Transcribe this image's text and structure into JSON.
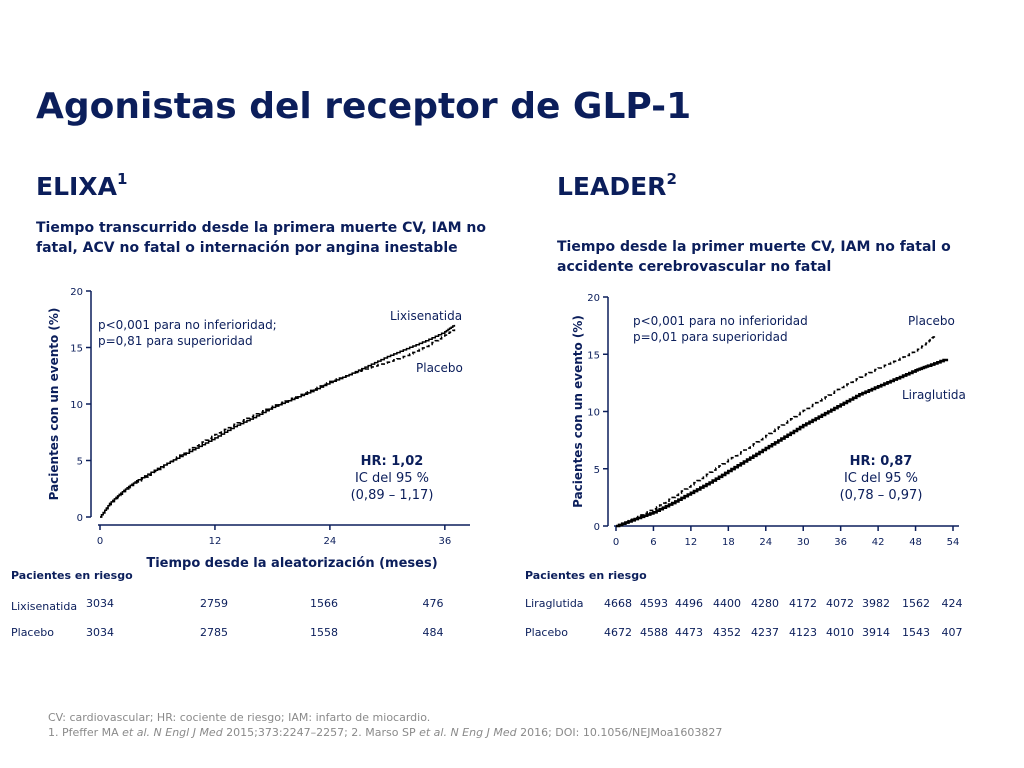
{
  "page": {
    "title": "Agonistas del receptor de GLP-1"
  },
  "elixa": {
    "name": "ELIXA",
    "ref": "1",
    "endpoint": "Tiempo transcurrido desde la primera muerte CV, IAM no fatal, ACV no fatal o internación por angina inestable",
    "pvalue_line1": "p<0,001 para no inferioridad;",
    "pvalue_line2": "p=0,81 para superioridad",
    "hr_line1": "HR: 1,02",
    "hr_line2": "IC del 95 %",
    "hr_line3": "(0,89 – 1,17)",
    "risk_title": "Pacientes en riesgo",
    "risk_rows": [
      {
        "label": "Lixisenatida",
        "values": [
          "3034",
          "2759",
          "1566",
          "476"
        ]
      },
      {
        "label": "Placebo",
        "values": [
          "3034",
          "2785",
          "1558",
          "484"
        ]
      }
    ]
  },
  "leader": {
    "name": "LEADER",
    "ref": "2",
    "endpoint": "Tiempo desde la primer muerte CV, IAM no fatal o accidente cerebrovascular no fatal",
    "pvalue_line1": "p<0,001 para no inferioridad",
    "pvalue_line2": "p=0,01 para superioridad",
    "hr_line1": "HR: 0,87",
    "hr_line2": "IC del 95 %",
    "hr_line3": "(0,78 – 0,97)",
    "risk_title": "Pacientes en riesgo",
    "risk_rows": [
      {
        "label": "Liraglutida",
        "values": [
          "4668",
          "4593",
          "4496",
          "4400",
          "4280",
          "4172",
          "4072",
          "3982",
          "1562",
          "424"
        ]
      },
      {
        "label": "Placebo",
        "values": [
          "4672",
          "4588",
          "4473",
          "4352",
          "4237",
          "4123",
          "4010",
          "3914",
          "1543",
          "407"
        ]
      }
    ]
  },
  "footnotes": {
    "line1": "CV: cardiovascular; HR: cociente de riesgo; IAM: infarto de miocardio.",
    "line2_a": "1. Pfeffer MA ",
    "line2_b": "et al. N Engl J Med",
    "line2_c": " 2015;373:2247–2257; 2. Marso SP ",
    "line2_d": "et al. N Eng J Med",
    "line2_e": " 2016; DOI: 10.1056/NEJMoa1603827"
  },
  "colors": {
    "navy": "#0b1e5b",
    "line": "#000000",
    "footnote": "#8a8a8a"
  },
  "chart_data": [
    {
      "type": "line",
      "title": "",
      "xlabel": "Tiempo desde la aleatorización (meses)",
      "ylabel": "Pacientes con un evento (%)",
      "xlim": [
        0,
        38
      ],
      "ylim": [
        0,
        20
      ],
      "xticks": [
        0,
        12,
        24,
        36
      ],
      "yticks": [
        0,
        5,
        10,
        15,
        20
      ],
      "legend": [
        "Lixisenatida",
        "Placebo"
      ],
      "series": [
        {
          "name": "Lixisenatida",
          "style": "solid",
          "x": [
            0,
            1,
            2,
            3,
            4,
            6,
            8,
            10,
            12,
            14,
            16,
            18,
            20,
            22,
            24,
            26,
            28,
            30,
            32,
            34,
            36,
            37
          ],
          "y": [
            0,
            1.2,
            2.0,
            2.7,
            3.3,
            4.3,
            5.2,
            6.1,
            7.0,
            8.0,
            8.8,
            9.7,
            10.4,
            11.1,
            11.9,
            12.6,
            13.4,
            14.2,
            14.9,
            15.6,
            16.4,
            17.0
          ]
        },
        {
          "name": "Placebo",
          "style": "dashed",
          "x": [
            0,
            1,
            2,
            3,
            4,
            6,
            8,
            10,
            12,
            14,
            16,
            18,
            20,
            22,
            24,
            26,
            28,
            30,
            32,
            34,
            36,
            37
          ],
          "y": [
            0,
            1.1,
            1.9,
            2.6,
            3.2,
            4.2,
            5.3,
            6.3,
            7.3,
            8.2,
            9.0,
            9.8,
            10.5,
            11.2,
            12.0,
            12.6,
            13.2,
            13.7,
            14.3,
            15.1,
            16.1,
            16.6
          ]
        }
      ]
    },
    {
      "type": "line",
      "title": "",
      "xlabel": "",
      "ylabel": "Pacientes  con un evento (%)",
      "xlim": [
        0,
        54
      ],
      "ylim": [
        0,
        20
      ],
      "xticks": [
        0,
        6,
        12,
        18,
        24,
        30,
        36,
        42,
        48,
        54
      ],
      "yticks": [
        0,
        5,
        10,
        15,
        20
      ],
      "legend": [
        "Placebo",
        "Liraglutida"
      ],
      "series": [
        {
          "name": "Placebo",
          "style": "dashed",
          "x": [
            0,
            3,
            6,
            9,
            12,
            15,
            18,
            21,
            24,
            27,
            30,
            33,
            36,
            39,
            42,
            45,
            48,
            50,
            51
          ],
          "y": [
            0,
            0.7,
            1.5,
            2.5,
            3.6,
            4.7,
            5.8,
            6.8,
            7.9,
            9.0,
            10.1,
            11.1,
            12.1,
            13.0,
            13.8,
            14.5,
            15.3,
            16.1,
            16.6
          ]
        },
        {
          "name": "Liraglutida",
          "style": "solid",
          "x": [
            0,
            3,
            6,
            9,
            12,
            15,
            18,
            21,
            24,
            27,
            30,
            33,
            36,
            39,
            42,
            45,
            48,
            50,
            53
          ],
          "y": [
            0,
            0.6,
            1.2,
            2.0,
            2.9,
            3.8,
            4.8,
            5.8,
            6.8,
            7.8,
            8.8,
            9.7,
            10.6,
            11.5,
            12.2,
            12.9,
            13.6,
            14.0,
            14.6
          ]
        }
      ]
    }
  ]
}
